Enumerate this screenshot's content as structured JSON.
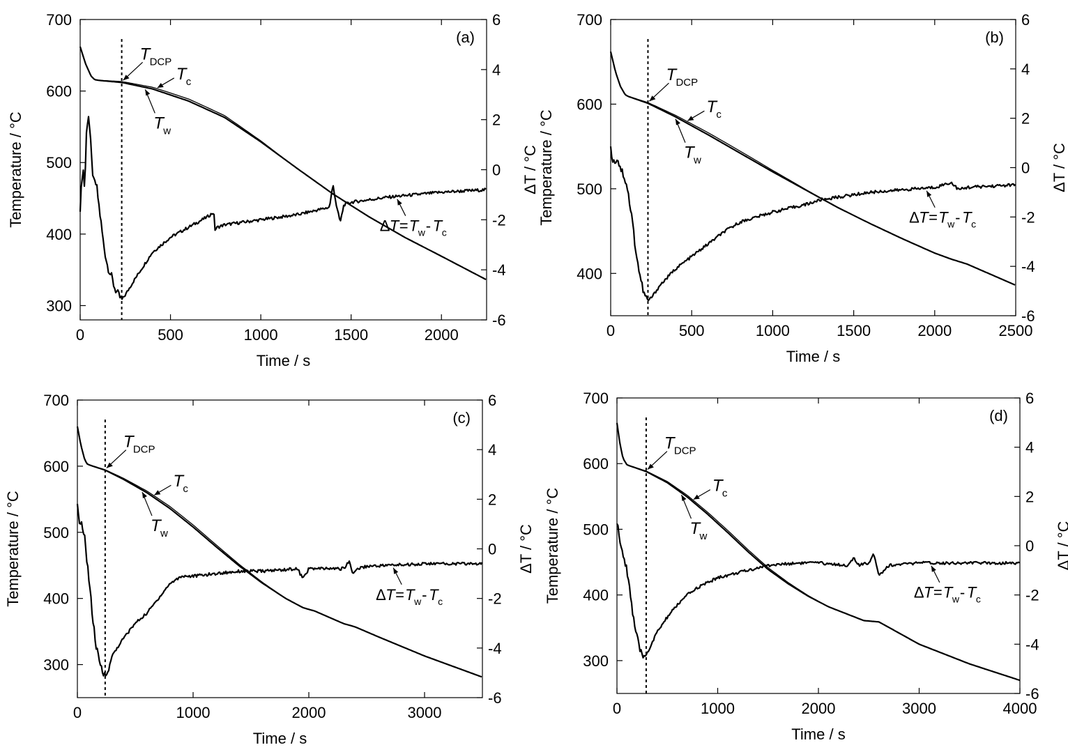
{
  "chart_data": [
    {
      "type": "line",
      "panel_label": "(a)",
      "xlabel": "Time / s",
      "ylabel": "Temperature / °C",
      "y2label": "ΔT / °C",
      "xlim": [
        0,
        2250
      ],
      "ylim": [
        280,
        700
      ],
      "y2lim": [
        -6,
        6
      ],
      "xticks": [
        0,
        500,
        1000,
        1500,
        2000
      ],
      "yticks": [
        300,
        400,
        500,
        600,
        700
      ],
      "y2ticks": [
        -6,
        -4,
        -2,
        0,
        2,
        4,
        6
      ],
      "dcp_time": 230,
      "labels": {
        "dcp_main": "T",
        "dcp_sub": "DCP",
        "tc_main": "T",
        "tc_sub": "c",
        "tw_main": "T",
        "tw_sub": "w",
        "dt_delta": "Δ",
        "dt_T1": "T",
        "dt_eq": "=",
        "dt_T2": "T",
        "dt_sub1": "w",
        "dt_minus": "-",
        "dt_T3": "T",
        "dt_sub2": "c"
      },
      "series": [
        {
          "role": "temperature",
          "axis": "left",
          "x": [
            0,
            30,
            60,
            80,
            100,
            230,
            400,
            600,
            800,
            1000,
            1200,
            1400,
            1600,
            1800,
            2000,
            2250
          ],
          "y": [
            662,
            638,
            621,
            616,
            615,
            612,
            603,
            586,
            563,
            529,
            492,
            456,
            424,
            395,
            369,
            336
          ]
        },
        {
          "role": "delta",
          "axis": "right",
          "x": [
            0,
            15,
            25,
            35,
            45,
            55,
            65,
            75,
            90,
            110,
            130,
            150,
            170,
            190,
            210,
            230,
            250,
            300,
            400,
            500,
            600,
            700,
            740,
            745,
            760,
            800,
            1000,
            1200,
            1380,
            1400,
            1420,
            1440,
            1460,
            1500,
            1700,
            2000,
            2250
          ],
          "y": [
            -1.5,
            0.2,
            -0.8,
            1.5,
            2.3,
            1.4,
            0.2,
            -0.5,
            -0.6,
            -1.8,
            -3.0,
            -3.8,
            -4.2,
            -4.7,
            -5.0,
            -5.2,
            -5.0,
            -4.4,
            -3.3,
            -2.7,
            -2.3,
            -1.9,
            -1.7,
            -2.4,
            -2.3,
            -2.2,
            -2.0,
            -1.8,
            -1.5,
            -0.6,
            -1.5,
            -2.1,
            -1.4,
            -1.3,
            -1.1,
            -0.9,
            -0.8
          ]
        }
      ]
    },
    {
      "type": "line",
      "panel_label": "(b)",
      "xlabel": "Time / s",
      "ylabel": "Temperature / °C",
      "y2label": "ΔT / °C",
      "xlim": [
        0,
        2500
      ],
      "ylim": [
        350,
        700
      ],
      "y2lim": [
        -6,
        6
      ],
      "xticks": [
        0,
        500,
        1000,
        1500,
        2000,
        2500
      ],
      "yticks": [
        400,
        500,
        600,
        700
      ],
      "y2ticks": [
        -6,
        -4,
        -2,
        0,
        2,
        4,
        6
      ],
      "dcp_time": 230,
      "labels": {
        "dcp_main": "T",
        "dcp_sub": "DCP",
        "tc_main": "T",
        "tc_sub": "c",
        "tw_main": "T",
        "tw_sub": "w",
        "dt_delta": "Δ",
        "dt_T1": "T",
        "dt_eq": "=",
        "dt_T2": "T",
        "dt_sub1": "w",
        "dt_minus": "-",
        "dt_T3": "T",
        "dt_sub2": "c"
      },
      "series": [
        {
          "role": "temperature",
          "axis": "left",
          "x": [
            0,
            30,
            60,
            90,
            110,
            230,
            400,
            600,
            800,
            1000,
            1200,
            1400,
            1600,
            1800,
            2000,
            2100,
            2200,
            2500
          ],
          "y": [
            662,
            638,
            621,
            611,
            609,
            601,
            585,
            564,
            542,
            520,
            499,
            478,
            459,
            441,
            424,
            417,
            411,
            386
          ]
        },
        {
          "role": "delta",
          "axis": "right",
          "x": [
            0,
            20,
            40,
            60,
            80,
            100,
            130,
            160,
            190,
            210,
            230,
            260,
            300,
            400,
            500,
            600,
            700,
            800,
            1000,
            1200,
            1300,
            1400,
            1600,
            1800,
            2000,
            2100,
            2150,
            2200,
            2500
          ],
          "y": [
            0.7,
            0.2,
            0.4,
            0.0,
            -0.3,
            -0.7,
            -2.0,
            -3.6,
            -4.7,
            -5.2,
            -5.4,
            -5.2,
            -4.8,
            -4.1,
            -3.6,
            -3.1,
            -2.6,
            -2.2,
            -1.8,
            -1.5,
            -1.3,
            -1.2,
            -1.0,
            -0.9,
            -0.8,
            -0.6,
            -0.9,
            -0.8,
            -0.7
          ]
        }
      ]
    },
    {
      "type": "line",
      "panel_label": "(c)",
      "xlabel": "Time / s",
      "ylabel": "Temperature / °C",
      "y2label": "ΔT / °C",
      "xlim": [
        0,
        3500
      ],
      "ylim": [
        250,
        700
      ],
      "y2lim": [
        -6,
        6
      ],
      "xticks": [
        0,
        1000,
        2000,
        3000
      ],
      "yticks": [
        300,
        400,
        500,
        600,
        700
      ],
      "y2ticks": [
        -6,
        -4,
        -2,
        0,
        2,
        4,
        6
      ],
      "dcp_time": 240,
      "labels": {
        "dcp_main": "T",
        "dcp_sub": "DCP",
        "tc_main": "T",
        "tc_sub": "c",
        "tw_main": "T",
        "tw_sub": "w",
        "dt_delta": "Δ",
        "dt_T1": "T",
        "dt_eq": "=",
        "dt_T2": "T",
        "dt_sub1": "w",
        "dt_minus": "-",
        "dt_T3": "T",
        "dt_sub2": "c"
      },
      "series": [
        {
          "role": "temperature",
          "axis": "left",
          "x": [
            0,
            30,
            60,
            80,
            100,
            240,
            400,
            600,
            800,
            1000,
            1200,
            1400,
            1600,
            1800,
            1950,
            2050,
            2300,
            2400,
            2600,
            3000,
            3500
          ],
          "y": [
            660,
            632,
            612,
            604,
            602,
            594,
            580,
            560,
            536,
            508,
            478,
            449,
            423,
            400,
            386,
            381,
            362,
            357,
            342,
            313,
            281
          ]
        },
        {
          "role": "delta",
          "axis": "right",
          "x": [
            0,
            20,
            40,
            60,
            80,
            100,
            130,
            160,
            190,
            220,
            240,
            270,
            300,
            400,
            500,
            600,
            700,
            800,
            900,
            1000,
            1200,
            1400,
            1600,
            1900,
            1950,
            2000,
            2050,
            2300,
            2350,
            2380,
            2420,
            2500,
            3000,
            3500
          ],
          "y": [
            1.7,
            0.8,
            1.1,
            0.5,
            -0.3,
            -1.2,
            -2.7,
            -3.9,
            -4.6,
            -5.0,
            -5.1,
            -4.9,
            -4.3,
            -3.6,
            -3.0,
            -2.6,
            -2.0,
            -1.4,
            -1.1,
            -1.1,
            -1.0,
            -0.9,
            -0.9,
            -0.8,
            -1.2,
            -0.8,
            -0.8,
            -0.8,
            -0.5,
            -1.0,
            -0.8,
            -0.7,
            -0.6,
            -0.6
          ]
        }
      ]
    },
    {
      "type": "line",
      "panel_label": "(d)",
      "xlabel": "Time / s",
      "ylabel": "Temperature / °C",
      "y2label": "ΔT / °C",
      "xlim": [
        0,
        4000
      ],
      "ylim": [
        250,
        700
      ],
      "y2lim": [
        -6,
        6
      ],
      "xticks": [
        0,
        1000,
        2000,
        3000,
        4000
      ],
      "yticks": [
        300,
        400,
        500,
        600,
        700
      ],
      "y2ticks": [
        -6,
        -4,
        -2,
        0,
        2,
        4,
        6
      ],
      "dcp_time": 290,
      "labels": {
        "dcp_main": "T",
        "dcp_sub": "DCP",
        "tc_main": "T",
        "tc_sub": "c",
        "tw_main": "T",
        "tw_sub": "w",
        "dt_delta": "Δ",
        "dt_T1": "T",
        "dt_eq": "=",
        "dt_T2": "T",
        "dt_sub1": "w",
        "dt_minus": "-",
        "dt_T3": "T",
        "dt_sub2": "c"
      },
      "series": [
        {
          "role": "temperature",
          "axis": "left",
          "x": [
            0,
            30,
            60,
            100,
            120,
            290,
            500,
            700,
            900,
            1100,
            1300,
            1500,
            1700,
            1900,
            2100,
            2300,
            2450,
            2600,
            2800,
            3000,
            3500,
            4000
          ],
          "y": [
            662,
            630,
            608,
            598,
            597,
            588,
            571,
            549,
            523,
            495,
            466,
            439,
            417,
            398,
            382,
            370,
            361,
            359,
            342,
            325,
            295,
            270
          ]
        },
        {
          "role": "delta",
          "axis": "right",
          "x": [
            0,
            20,
            40,
            60,
            80,
            100,
            130,
            160,
            200,
            240,
            270,
            290,
            320,
            400,
            500,
            600,
            700,
            800,
            1000,
            1200,
            1500,
            1800,
            2000,
            2300,
            2350,
            2400,
            2500,
            2550,
            2600,
            2700,
            3000,
            3500,
            4000
          ],
          "y": [
            1.0,
            0.5,
            -0.2,
            -0.4,
            -0.6,
            -1.0,
            -1.8,
            -2.9,
            -3.8,
            -4.4,
            -4.5,
            -4.4,
            -4.2,
            -3.5,
            -2.9,
            -2.4,
            -2.0,
            -1.7,
            -1.3,
            -1.1,
            -0.8,
            -0.7,
            -0.7,
            -0.8,
            -0.5,
            -0.8,
            -0.7,
            -0.3,
            -1.2,
            -0.8,
            -0.7,
            -0.7,
            -0.7
          ]
        }
      ]
    }
  ]
}
